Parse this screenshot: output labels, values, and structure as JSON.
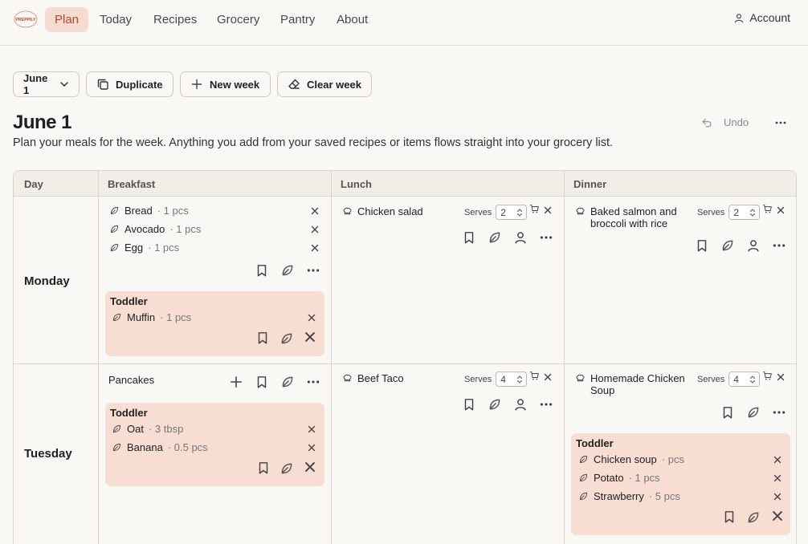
{
  "app": {
    "logo_text": "PREPPILY"
  },
  "nav": {
    "items": [
      {
        "label": "Plan",
        "active": true
      },
      {
        "label": "Today"
      },
      {
        "label": "Recipes"
      },
      {
        "label": "Grocery"
      },
      {
        "label": "Pantry"
      },
      {
        "label": "About"
      }
    ],
    "account_label": "Account"
  },
  "toolbar": {
    "week_select": "June 1",
    "duplicate": "Duplicate",
    "new_week": "New week",
    "clear_week": "Clear week"
  },
  "page": {
    "title": "June 1",
    "subtitle": "Plan your meals for the week. Anything you add from your saved recipes or items flows straight into your grocery list.",
    "undo": "Undo"
  },
  "grid": {
    "headers": {
      "day": "Day",
      "breakfast": "Breakfast",
      "lunch": "Lunch",
      "dinner": "Dinner"
    },
    "serves_label": "Serves",
    "toddler_label": "Toddler",
    "monday": {
      "day": "Monday",
      "breakfast_items": [
        {
          "name": "Bread",
          "qty": "· 1 pcs"
        },
        {
          "name": "Avocado",
          "qty": "· 1 pcs"
        },
        {
          "name": "Egg",
          "qty": "· 1 pcs"
        }
      ],
      "breakfast_toddler": [
        {
          "name": "Muffin",
          "qty": "· 1 pcs"
        }
      ],
      "lunch": {
        "name": "Chicken salad",
        "serves": "2"
      },
      "dinner": {
        "name": "Baked salmon and broccoli with rice",
        "serves": "2"
      }
    },
    "tuesday": {
      "day": "Tuesday",
      "breakfast_meal": "Pancakes",
      "breakfast_toddler": [
        {
          "name": "Oat",
          "qty": "· 3 tbsp"
        },
        {
          "name": "Banana",
          "qty": "· 0.5 pcs"
        }
      ],
      "lunch": {
        "name": "Beef Taco",
        "serves": "4"
      },
      "dinner": {
        "name": "Homemade Chicken Soup",
        "serves": "4"
      },
      "dinner_toddler": [
        {
          "name": "Chicken soup",
          "qty": "· pcs"
        },
        {
          "name": "Potato",
          "qty": "· 1 pcs"
        },
        {
          "name": "Strawberry",
          "qty": "· 5 pcs"
        }
      ]
    }
  },
  "colors": {
    "accent": "#b34a2a",
    "active_bg": "#f6dcd0",
    "toddler_bg": "#f7ddd2",
    "page_bg": "#faf8f4"
  },
  "icons": [
    "user-icon",
    "chevron-down-icon",
    "copy-icon",
    "plus-icon",
    "eraser-icon",
    "undo-icon",
    "more-icon",
    "leaf-icon",
    "chef-hat-icon",
    "bookmark-icon",
    "cart-icon",
    "close-icon",
    "person-icon"
  ]
}
